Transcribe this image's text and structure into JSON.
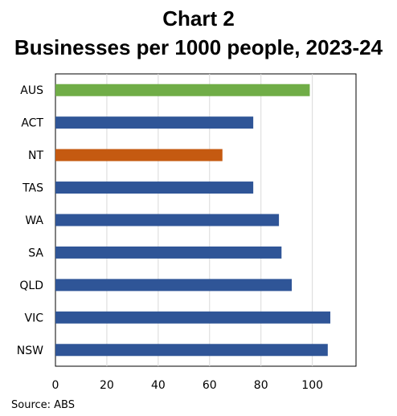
{
  "chart_data": {
    "type": "bar",
    "orientation": "horizontal",
    "title": "Chart 2",
    "subtitle": "Businesses per 1000 people, 2023-24",
    "categories": [
      "AUS",
      "ACT",
      "NT",
      "TAS",
      "WA",
      "SA",
      "QLD",
      "VIC",
      "NSW"
    ],
    "values": [
      99,
      77,
      65,
      77,
      87,
      88,
      92,
      107,
      106
    ],
    "colors": [
      "#70ad47",
      "#2f5597",
      "#c55a11",
      "#2f5597",
      "#2f5597",
      "#2f5597",
      "#2f5597",
      "#2f5597",
      "#2f5597"
    ],
    "xlim": [
      0,
      117
    ],
    "xticks": [
      0,
      20,
      40,
      60,
      80,
      100
    ],
    "xlabel": "",
    "ylabel": "",
    "grid": "vertical",
    "legend": "none",
    "source": "Source: ABS"
  }
}
